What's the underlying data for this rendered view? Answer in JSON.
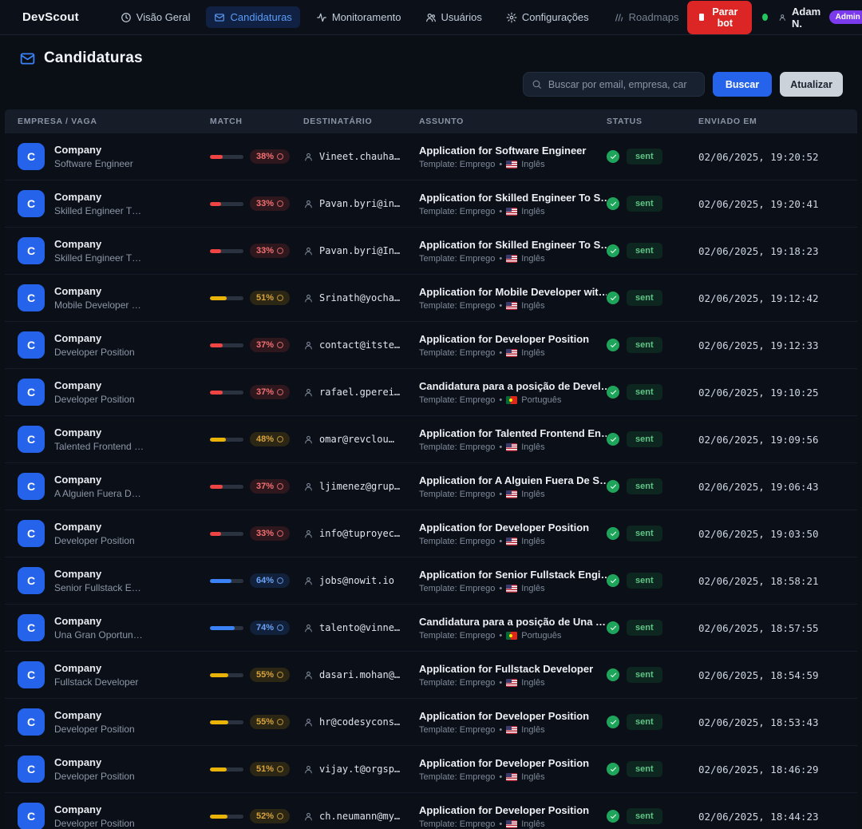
{
  "nav": {
    "brand": "DevScout",
    "items": [
      {
        "id": "visao-geral",
        "label": "Visão Geral",
        "icon": "clock-icon",
        "active": false
      },
      {
        "id": "candidaturas",
        "label": "Candidaturas",
        "icon": "mail-icon",
        "active": true
      },
      {
        "id": "monitoramento",
        "label": "Monitoramento",
        "icon": "activity-icon",
        "active": false
      },
      {
        "id": "usuarios",
        "label": "Usuários",
        "icon": "users-icon",
        "active": false
      },
      {
        "id": "configuracoes",
        "label": "Configurações",
        "icon": "gear-icon",
        "active": false
      },
      {
        "id": "roadmaps",
        "label": "Roadmaps",
        "icon": "roadmap-icon",
        "active": false
      }
    ],
    "stop_bot_label": "Parar bot",
    "user_name": "Adam N.",
    "user_role_badge": "Admin"
  },
  "header": {
    "title": "Candidaturas",
    "search_placeholder": "Buscar por email, empresa, car",
    "search_button": "Buscar",
    "refresh_button": "Atualizar"
  },
  "colors": {
    "accent_blue": "#2563eb",
    "danger_red": "#dc2626",
    "success_green": "#22c55e",
    "admin_purple": "#7c3aed",
    "match_red": "#ef4444",
    "match_yellow": "#eab308",
    "match_blue": "#3b82f6"
  },
  "table": {
    "columns": [
      "Empresa / Vaga",
      "Match",
      "Destinatário",
      "Assunto",
      "Status",
      "Enviado em"
    ],
    "avatar_letter": "C",
    "meta_separator": "•",
    "rows": [
      {
        "company": "Company",
        "position": "Software Engineer",
        "match_pct": 38,
        "match_level": "red",
        "recipient": "Vineet.chauha…",
        "subject": "Application for Software Engineer",
        "template": "Template: Emprego",
        "language": "Inglês",
        "flag": "us",
        "status": "sent",
        "sent_at": "02/06/2025, 19:20:52"
      },
      {
        "company": "Company",
        "position": "Skilled Engineer T…",
        "match_pct": 33,
        "match_level": "red",
        "recipient": "Pavan.byri@in…",
        "subject": "Application for Skilled Engineer To S…",
        "template": "Template: Emprego",
        "language": "Inglês",
        "flag": "us",
        "status": "sent",
        "sent_at": "02/06/2025, 19:20:41"
      },
      {
        "company": "Company",
        "position": "Skilled Engineer T…",
        "match_pct": 33,
        "match_level": "red",
        "recipient": "Pavan.byri@In…",
        "subject": "Application for Skilled Engineer To S…",
        "template": "Template: Emprego",
        "language": "Inglês",
        "flag": "us",
        "status": "sent",
        "sent_at": "02/06/2025, 19:18:23"
      },
      {
        "company": "Company",
        "position": "Mobile Developer …",
        "match_pct": 51,
        "match_level": "yellow",
        "recipient": "Srinath@yocha…",
        "subject": "Application for Mobile Developer wit…",
        "template": "Template: Emprego",
        "language": "Inglês",
        "flag": "us",
        "status": "sent",
        "sent_at": "02/06/2025, 19:12:42"
      },
      {
        "company": "Company",
        "position": "Developer Position",
        "match_pct": 37,
        "match_level": "red",
        "recipient": "contact@itste…",
        "subject": "Application for Developer Position",
        "template": "Template: Emprego",
        "language": "Inglês",
        "flag": "us",
        "status": "sent",
        "sent_at": "02/06/2025, 19:12:33"
      },
      {
        "company": "Company",
        "position": "Developer Position",
        "match_pct": 37,
        "match_level": "red",
        "recipient": "rafael.gperei…",
        "subject": "Candidatura para a posição de Devel…",
        "template": "Template: Emprego",
        "language": "Português",
        "flag": "pt",
        "status": "sent",
        "sent_at": "02/06/2025, 19:10:25"
      },
      {
        "company": "Company",
        "position": "Talented Frontend …",
        "match_pct": 48,
        "match_level": "yellow",
        "recipient": "omar@revclou…",
        "subject": "Application for Talented Frontend En…",
        "template": "Template: Emprego",
        "language": "Inglês",
        "flag": "us",
        "status": "sent",
        "sent_at": "02/06/2025, 19:09:56"
      },
      {
        "company": "Company",
        "position": "A Alguien Fuera D…",
        "match_pct": 37,
        "match_level": "red",
        "recipient": "ljimenez@grup…",
        "subject": "Application for A Alguien Fuera De S…",
        "template": "Template: Emprego",
        "language": "Inglês",
        "flag": "us",
        "status": "sent",
        "sent_at": "02/06/2025, 19:06:43"
      },
      {
        "company": "Company",
        "position": "Developer Position",
        "match_pct": 33,
        "match_level": "red",
        "recipient": "info@tuproyec…",
        "subject": "Application for Developer Position",
        "template": "Template: Emprego",
        "language": "Inglês",
        "flag": "us",
        "status": "sent",
        "sent_at": "02/06/2025, 19:03:50"
      },
      {
        "company": "Company",
        "position": "Senior Fullstack E…",
        "match_pct": 64,
        "match_level": "blue",
        "recipient": "jobs@nowit.io",
        "subject": "Application for Senior Fullstack Engi…",
        "template": "Template: Emprego",
        "language": "Inglês",
        "flag": "us",
        "status": "sent",
        "sent_at": "02/06/2025, 18:58:21"
      },
      {
        "company": "Company",
        "position": "Una Gran Oportun…",
        "match_pct": 74,
        "match_level": "blue",
        "recipient": "talento@vinne…",
        "subject": "Candidatura para a posição de Una …",
        "template": "Template: Emprego",
        "language": "Português",
        "flag": "pt",
        "status": "sent",
        "sent_at": "02/06/2025, 18:57:55"
      },
      {
        "company": "Company",
        "position": "Fullstack Developer",
        "match_pct": 55,
        "match_level": "yellow",
        "recipient": "dasari.mohan@…",
        "subject": "Application for Fullstack Developer",
        "template": "Template: Emprego",
        "language": "Inglês",
        "flag": "us",
        "status": "sent",
        "sent_at": "02/06/2025, 18:54:59"
      },
      {
        "company": "Company",
        "position": "Developer Position",
        "match_pct": 55,
        "match_level": "yellow",
        "recipient": "hr@codesycons…",
        "subject": "Application for Developer Position",
        "template": "Template: Emprego",
        "language": "Inglês",
        "flag": "us",
        "status": "sent",
        "sent_at": "02/06/2025, 18:53:43"
      },
      {
        "company": "Company",
        "position": "Developer Position",
        "match_pct": 51,
        "match_level": "yellow",
        "recipient": "vijay.t@orgsp…",
        "subject": "Application for Developer Position",
        "template": "Template: Emprego",
        "language": "Inglês",
        "flag": "us",
        "status": "sent",
        "sent_at": "02/06/2025, 18:46:29"
      },
      {
        "company": "Company",
        "position": "Developer Position",
        "match_pct": 52,
        "match_level": "yellow",
        "recipient": "ch.neumann@my…",
        "subject": "Application for Developer Position",
        "template": "Template: Emprego",
        "language": "Inglês",
        "flag": "us",
        "status": "sent",
        "sent_at": "02/06/2025, 18:44:23"
      }
    ]
  }
}
